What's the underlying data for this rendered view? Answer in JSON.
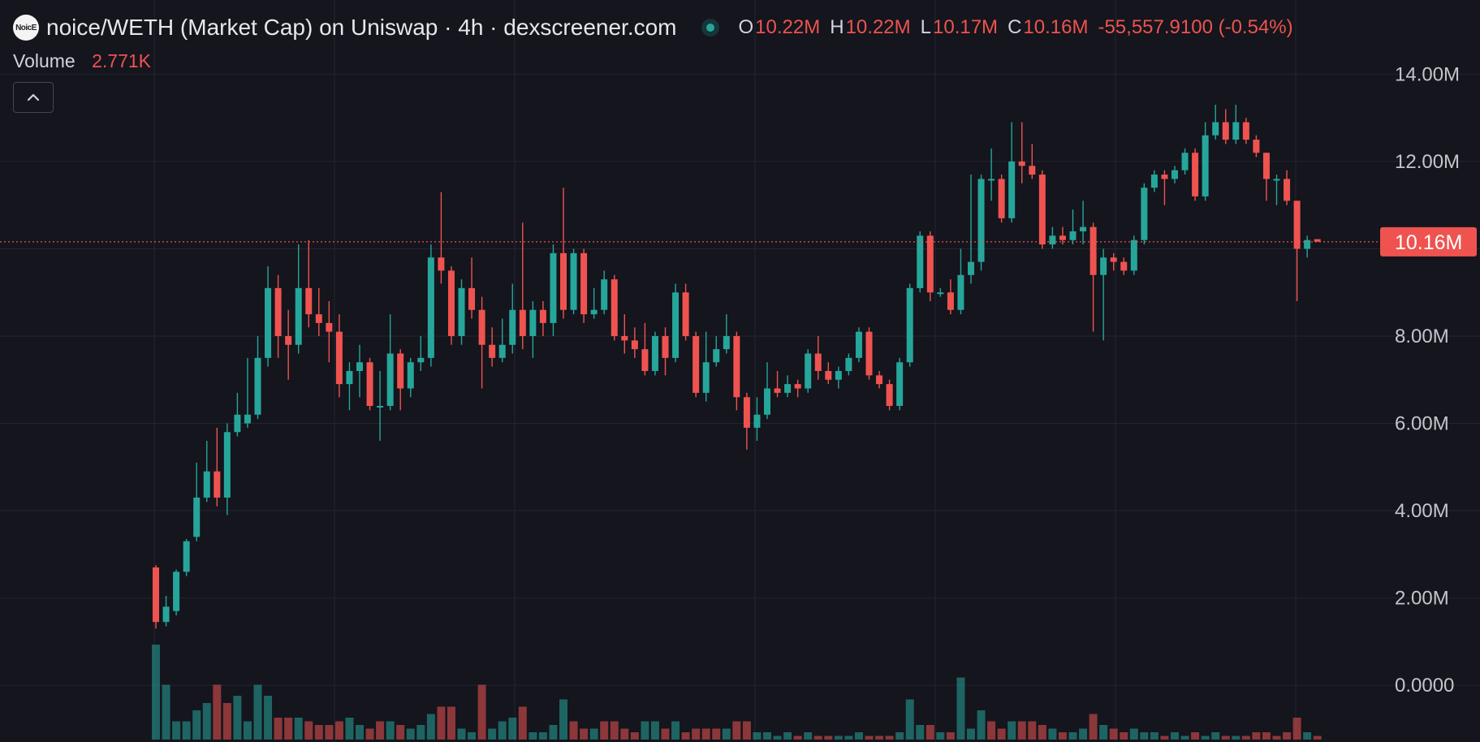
{
  "header": {
    "logo_text": "NoicE",
    "title": "noice/WETH (Market Cap) on Uniswap · 4h · dexscreener.com",
    "ohlc": {
      "o_label": "O",
      "o_value": "10.22M",
      "h_label": "H",
      "h_value": "10.22M",
      "l_label": "L",
      "l_value": "10.17M",
      "c_label": "C",
      "c_value": "10.16M",
      "change": "-55,557.9100 (-0.54%)"
    },
    "volume_label": "Volume",
    "volume_value": "2.771K",
    "collapse_icon": "chevron-up-icon"
  },
  "colors": {
    "background": "#14151d",
    "up": "#26a69a",
    "down": "#ef5350",
    "grid": "#23252f",
    "axis_text": "#c3c5cb"
  },
  "chart_data": {
    "type": "candlestick",
    "title": "noice/WETH (Market Cap) on Uniswap · 4h · dexscreener.com",
    "yaxis_labels": [
      "14.00M",
      "12.00M",
      "10.00M",
      "8.00M",
      "6.00M",
      "4.00M",
      "2.00M",
      "0.0000"
    ],
    "ylim": [
      -1300000,
      15700000
    ],
    "y_ticks": [
      14000000,
      12000000,
      10000000,
      8000000,
      6000000,
      4000000,
      2000000,
      0
    ],
    "current_price": 10160000,
    "current_price_label": "10.16M",
    "grid": true,
    "x_start": 0,
    "x_step": 1,
    "candles": [
      [
        2.7,
        1.45,
        2.75,
        1.3
      ],
      [
        1.45,
        1.8,
        2.05,
        1.35
      ],
      [
        1.7,
        2.6,
        2.65,
        1.6
      ],
      [
        2.6,
        3.3,
        3.35,
        2.5
      ],
      [
        3.4,
        4.3,
        5.1,
        3.3
      ],
      [
        4.3,
        4.9,
        5.6,
        4.2
      ],
      [
        4.9,
        4.3,
        5.9,
        4.1
      ],
      [
        4.3,
        5.8,
        6.0,
        3.9
      ],
      [
        5.8,
        6.2,
        6.7,
        5.7
      ],
      [
        6.0,
        6.2,
        7.5,
        5.9
      ],
      [
        6.2,
        7.5,
        8.0,
        6.1
      ],
      [
        7.5,
        9.1,
        9.6,
        7.3
      ],
      [
        9.1,
        8.0,
        9.4,
        7.5
      ],
      [
        8.0,
        7.8,
        8.6,
        7.0
      ],
      [
        7.8,
        9.1,
        10.1,
        7.6
      ],
      [
        9.1,
        8.5,
        10.2,
        8.2
      ],
      [
        8.5,
        8.3,
        9.1,
        8.0
      ],
      [
        8.3,
        8.1,
        8.8,
        7.4
      ],
      [
        8.1,
        6.9,
        8.5,
        6.6
      ],
      [
        6.9,
        7.2,
        7.4,
        6.3
      ],
      [
        7.2,
        7.4,
        7.8,
        6.6
      ],
      [
        7.4,
        6.4,
        7.5,
        6.3
      ],
      [
        6.4,
        6.4,
        7.2,
        5.6
      ],
      [
        6.4,
        7.6,
        8.5,
        6.3
      ],
      [
        7.6,
        6.8,
        7.7,
        6.3
      ],
      [
        6.8,
        7.4,
        7.5,
        6.6
      ],
      [
        7.4,
        7.5,
        8.0,
        7.2
      ],
      [
        7.5,
        9.8,
        10.1,
        7.3
      ],
      [
        9.8,
        9.5,
        11.3,
        9.2
      ],
      [
        9.5,
        8.0,
        9.6,
        7.8
      ],
      [
        8.0,
        9.1,
        9.3,
        7.8
      ],
      [
        9.1,
        8.6,
        9.8,
        8.4
      ],
      [
        8.6,
        7.8,
        8.9,
        6.8
      ],
      [
        7.8,
        7.5,
        8.2,
        7.3
      ],
      [
        7.5,
        7.8,
        8.4,
        7.4
      ],
      [
        7.8,
        8.6,
        9.2,
        7.6
      ],
      [
        8.6,
        8.0,
        10.6,
        7.7
      ],
      [
        8.0,
        8.6,
        8.8,
        7.5
      ],
      [
        8.6,
        8.3,
        8.8,
        8.0
      ],
      [
        8.3,
        9.9,
        10.1,
        8.0
      ],
      [
        9.9,
        8.6,
        11.4,
        8.4
      ],
      [
        8.6,
        9.9,
        10.0,
        8.5
      ],
      [
        9.9,
        8.5,
        10.0,
        8.3
      ],
      [
        8.5,
        8.6,
        9.1,
        8.4
      ],
      [
        8.6,
        9.3,
        9.5,
        8.5
      ],
      [
        9.3,
        8.0,
        9.4,
        7.9
      ],
      [
        8.0,
        7.9,
        8.5,
        7.6
      ],
      [
        7.9,
        7.7,
        8.2,
        7.5
      ],
      [
        7.7,
        7.2,
        8.3,
        7.1
      ],
      [
        7.2,
        8.0,
        8.1,
        7.1
      ],
      [
        8.0,
        7.5,
        8.2,
        7.1
      ],
      [
        7.5,
        9.0,
        9.2,
        7.4
      ],
      [
        9.0,
        8.0,
        9.2,
        7.9
      ],
      [
        8.0,
        6.7,
        8.1,
        6.6
      ],
      [
        6.7,
        7.4,
        8.1,
        6.5
      ],
      [
        7.4,
        7.7,
        8.0,
        7.3
      ],
      [
        7.7,
        8.0,
        8.5,
        7.6
      ],
      [
        8.0,
        6.6,
        8.1,
        6.3
      ],
      [
        6.6,
        5.9,
        6.7,
        5.4
      ],
      [
        5.9,
        6.2,
        6.6,
        5.6
      ],
      [
        6.2,
        6.8,
        7.4,
        6.1
      ],
      [
        6.8,
        6.7,
        7.2,
        6.6
      ],
      [
        6.7,
        6.9,
        7.1,
        6.6
      ],
      [
        6.9,
        6.8,
        7.0,
        6.6
      ],
      [
        6.8,
        7.6,
        7.7,
        6.7
      ],
      [
        7.6,
        7.2,
        8.0,
        7.0
      ],
      [
        7.2,
        7.0,
        7.4,
        6.9
      ],
      [
        7.0,
        7.2,
        7.3,
        6.8
      ],
      [
        7.2,
        7.5,
        7.6,
        7.1
      ],
      [
        7.5,
        8.1,
        8.2,
        7.4
      ],
      [
        8.1,
        7.1,
        8.2,
        7.0
      ],
      [
        7.1,
        6.9,
        7.2,
        6.8
      ],
      [
        6.9,
        6.4,
        7.0,
        6.3
      ],
      [
        6.4,
        7.4,
        7.5,
        6.3
      ],
      [
        7.4,
        9.1,
        9.2,
        7.3
      ],
      [
        9.1,
        10.3,
        10.4,
        9.0
      ],
      [
        10.3,
        9.0,
        10.4,
        8.8
      ],
      [
        9.0,
        9.0,
        9.1,
        8.9
      ],
      [
        9.0,
        8.6,
        9.3,
        8.5
      ],
      [
        8.6,
        9.4,
        10.0,
        8.5
      ],
      [
        9.4,
        9.7,
        11.7,
        9.2
      ],
      [
        9.7,
        11.6,
        11.7,
        9.5
      ],
      [
        11.6,
        11.6,
        12.3,
        11.1
      ],
      [
        11.6,
        10.7,
        11.7,
        10.6
      ],
      [
        10.7,
        12.0,
        12.9,
        10.6
      ],
      [
        12.0,
        11.9,
        12.9,
        11.5
      ],
      [
        11.9,
        11.7,
        12.4,
        11.6
      ],
      [
        11.7,
        10.1,
        11.8,
        10.0
      ],
      [
        10.1,
        10.3,
        10.5,
        10.0
      ],
      [
        10.3,
        10.2,
        10.5,
        10.1
      ],
      [
        10.2,
        10.4,
        10.9,
        10.1
      ],
      [
        10.4,
        10.5,
        11.1,
        10.1
      ],
      [
        10.5,
        9.4,
        10.6,
        8.1
      ],
      [
        9.4,
        9.8,
        10.0,
        7.9
      ],
      [
        9.8,
        9.7,
        9.9,
        9.5
      ],
      [
        9.7,
        9.5,
        9.8,
        9.4
      ],
      [
        9.5,
        10.2,
        10.3,
        9.4
      ],
      [
        10.2,
        11.4,
        11.5,
        10.1
      ],
      [
        11.4,
        11.7,
        11.8,
        11.3
      ],
      [
        11.7,
        11.6,
        11.8,
        11.0
      ],
      [
        11.6,
        11.8,
        11.9,
        11.5
      ],
      [
        11.8,
        12.2,
        12.3,
        11.7
      ],
      [
        12.2,
        11.2,
        12.3,
        11.1
      ],
      [
        11.2,
        12.6,
        12.9,
        11.1
      ],
      [
        12.6,
        12.9,
        13.3,
        12.5
      ],
      [
        12.9,
        12.5,
        13.2,
        12.4
      ],
      [
        12.5,
        12.9,
        13.3,
        12.4
      ],
      [
        12.9,
        12.5,
        13.0,
        12.4
      ],
      [
        12.5,
        12.2,
        12.6,
        12.1
      ],
      [
        12.2,
        11.6,
        12.2,
        11.1
      ],
      [
        11.6,
        11.6,
        11.7,
        11.0
      ],
      [
        11.6,
        11.1,
        11.8,
        11.0
      ],
      [
        11.1,
        10.0,
        11.1,
        8.8
      ],
      [
        10.0,
        10.2,
        10.3,
        9.8
      ],
      [
        10.22,
        10.16,
        10.22,
        10.17
      ]
    ],
    "volumes": [
      [
        2.6,
        1
      ],
      [
        1.5,
        1
      ],
      [
        0.5,
        1
      ],
      [
        0.5,
        1
      ],
      [
        0.8,
        1
      ],
      [
        1.0,
        1
      ],
      [
        1.5,
        0
      ],
      [
        1.0,
        0
      ],
      [
        1.2,
        1
      ],
      [
        0.5,
        1
      ],
      [
        1.5,
        1
      ],
      [
        1.2,
        1
      ],
      [
        0.6,
        0
      ],
      [
        0.6,
        0
      ],
      [
        0.6,
        1
      ],
      [
        0.5,
        0
      ],
      [
        0.4,
        0
      ],
      [
        0.4,
        0
      ],
      [
        0.5,
        0
      ],
      [
        0.6,
        1
      ],
      [
        0.4,
        1
      ],
      [
        0.3,
        0
      ],
      [
        0.5,
        0
      ],
      [
        0.5,
        1
      ],
      [
        0.4,
        0
      ],
      [
        0.3,
        1
      ],
      [
        0.4,
        1
      ],
      [
        0.7,
        1
      ],
      [
        0.9,
        0
      ],
      [
        0.9,
        0
      ],
      [
        0.3,
        1
      ],
      [
        0.2,
        1
      ],
      [
        1.5,
        0
      ],
      [
        0.3,
        1
      ],
      [
        0.5,
        1
      ],
      [
        0.6,
        1
      ],
      [
        0.9,
        0
      ],
      [
        0.2,
        1
      ],
      [
        0.2,
        1
      ],
      [
        0.4,
        1
      ],
      [
        1.1,
        1
      ],
      [
        0.5,
        0
      ],
      [
        0.3,
        0
      ],
      [
        0.3,
        1
      ],
      [
        0.5,
        0
      ],
      [
        0.5,
        0
      ],
      [
        0.3,
        0
      ],
      [
        0.2,
        0
      ],
      [
        0.5,
        1
      ],
      [
        0.5,
        1
      ],
      [
        0.3,
        0
      ],
      [
        0.5,
        1
      ],
      [
        0.2,
        0
      ],
      [
        0.3,
        0
      ],
      [
        0.3,
        0
      ],
      [
        0.3,
        0
      ],
      [
        0.3,
        1
      ],
      [
        0.5,
        0
      ],
      [
        0.5,
        0
      ],
      [
        0.2,
        1
      ],
      [
        0.2,
        1
      ],
      [
        0.1,
        1
      ],
      [
        0.2,
        1
      ],
      [
        0.1,
        0
      ],
      [
        0.2,
        1
      ],
      [
        0.1,
        0
      ],
      [
        0.1,
        0
      ],
      [
        0.1,
        1
      ],
      [
        0.1,
        1
      ],
      [
        0.2,
        1
      ],
      [
        0.1,
        0
      ],
      [
        0.1,
        0
      ],
      [
        0.1,
        0
      ],
      [
        0.2,
        1
      ],
      [
        1.1,
        1
      ],
      [
        0.4,
        1
      ],
      [
        0.4,
        0
      ],
      [
        0.2,
        1
      ],
      [
        0.2,
        0
      ],
      [
        1.7,
        1
      ],
      [
        0.3,
        1
      ],
      [
        0.8,
        1
      ],
      [
        0.5,
        0
      ],
      [
        0.3,
        0
      ],
      [
        0.5,
        1
      ],
      [
        0.5,
        0
      ],
      [
        0.5,
        0
      ],
      [
        0.4,
        0
      ],
      [
        0.3,
        1
      ],
      [
        0.2,
        0
      ],
      [
        0.2,
        1
      ],
      [
        0.3,
        1
      ],
      [
        0.7,
        0
      ],
      [
        0.4,
        1
      ],
      [
        0.3,
        0
      ],
      [
        0.2,
        0
      ],
      [
        0.3,
        1
      ],
      [
        0.2,
        1
      ],
      [
        0.2,
        1
      ],
      [
        0.1,
        0
      ],
      [
        0.2,
        1
      ],
      [
        0.1,
        1
      ],
      [
        0.2,
        0
      ],
      [
        0.1,
        1
      ],
      [
        0.2,
        1
      ],
      [
        0.1,
        0
      ],
      [
        0.1,
        1
      ],
      [
        0.1,
        0
      ],
      [
        0.2,
        0
      ],
      [
        0.2,
        0
      ],
      [
        0.1,
        0
      ],
      [
        0.2,
        0
      ],
      [
        0.6,
        0
      ],
      [
        0.2,
        1
      ],
      [
        0.1,
        0
      ]
    ]
  }
}
